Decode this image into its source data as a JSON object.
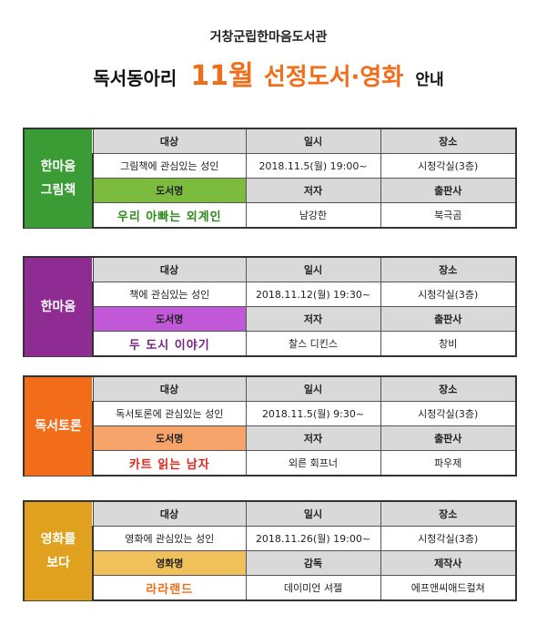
{
  "header": {
    "library": "거창군립한마음도서관",
    "title_part1": "독서동아리",
    "title_month": "11월",
    "title_main": "선정도서·영화",
    "title_end": "안내"
  },
  "labels": {
    "target": "대상",
    "datetime": "일시",
    "place": "장소",
    "book_title": "도서명",
    "author": "저자",
    "publisher": "출판사",
    "movie_title": "영화명",
    "director": "감독",
    "producer": "제작사"
  },
  "clubs": [
    {
      "name_line1": "한마음",
      "name_line2": "그림책",
      "color": "#3b9b35",
      "title_header_color": "#7dbb3f",
      "title_text_color": "#2a8a1a",
      "target": "그림책에 관심있는 성인",
      "datetime": "2018.11.5(월) 19:00~",
      "place": "시청각실(3층)",
      "title": "우리 아빠는 외계인",
      "author": "남강한",
      "publisher": "북극곰"
    },
    {
      "name_line1": "한마음",
      "name_line2": "",
      "color": "#8e2c93",
      "title_header_color": "#c058d8",
      "title_text_color": "#7a1f82",
      "target": "책에 관심있는 성인",
      "datetime": "2018.11.12(월) 19:30~",
      "place": "시청각실(3층)",
      "title": "두 도시 이야기",
      "author": "찰스 디킨스",
      "publisher": "창비"
    },
    {
      "name_line1": "독서토론",
      "name_line2": "",
      "color": "#f26d1a",
      "title_header_color": "#f7a46b",
      "title_text_color": "#e0261b",
      "target": "독서토론에 관심있는 성인",
      "datetime": "2018.11.5(월) 9:30~",
      "place": "시청각실(3층)",
      "title": "카트 읽는 남자",
      "author": "외른 회프너",
      "publisher": "파우제"
    },
    {
      "name_line1": "영화를",
      "name_line2": "보다",
      "color": "#e0a11e",
      "title_header_color": "#f0c05a",
      "title_text_color": "#f26d1a",
      "target": "영화에 관심있는 성인",
      "datetime": "2018.11.26(월) 19:00~",
      "place": "시청각실(3층)",
      "title": "라라랜드",
      "author": "데이미언 셔젤",
      "publisher": "에프앤씨애드컬쳐"
    }
  ]
}
